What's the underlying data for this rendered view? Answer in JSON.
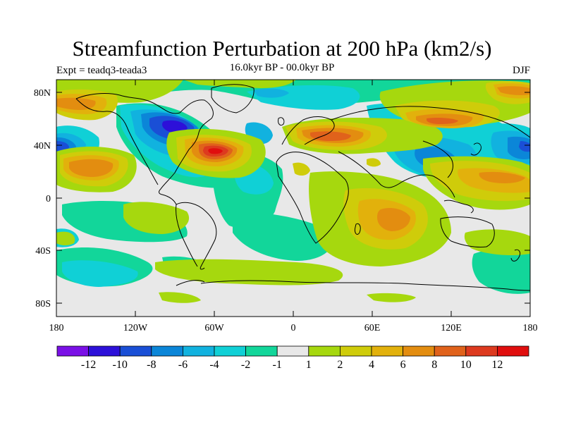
{
  "header": {
    "title": "Streamfunction Perturbation at 200 hPa (km2/s)",
    "experiment": "Expt = teadq3-teada3",
    "period": "16.0kyr BP - 00.0kyr BP",
    "season": "DJF"
  },
  "map": {
    "lat_ticks": [
      "80N",
      "40N",
      "0",
      "40S",
      "80S"
    ],
    "lon_ticks": [
      "180",
      "120W",
      "60W",
      "0",
      "60E",
      "120E",
      "180"
    ]
  },
  "colorbar": {
    "labels": [
      "-12",
      "-10",
      "-8",
      "-6",
      "-4",
      "-2",
      "-1",
      "1",
      "2",
      "4",
      "6",
      "8",
      "10",
      "12"
    ],
    "colors": [
      "#7a10e6",
      "#2d10d9",
      "#1a4fd6",
      "#0b86d8",
      "#11b2df",
      "#10d0d6",
      "#12d69a",
      "#e8e8e8",
      "#a6d80e",
      "#cfcc0a",
      "#e2b10c",
      "#e38d10",
      "#e0621b",
      "#dd3a1f",
      "#e00e0e"
    ]
  }
}
